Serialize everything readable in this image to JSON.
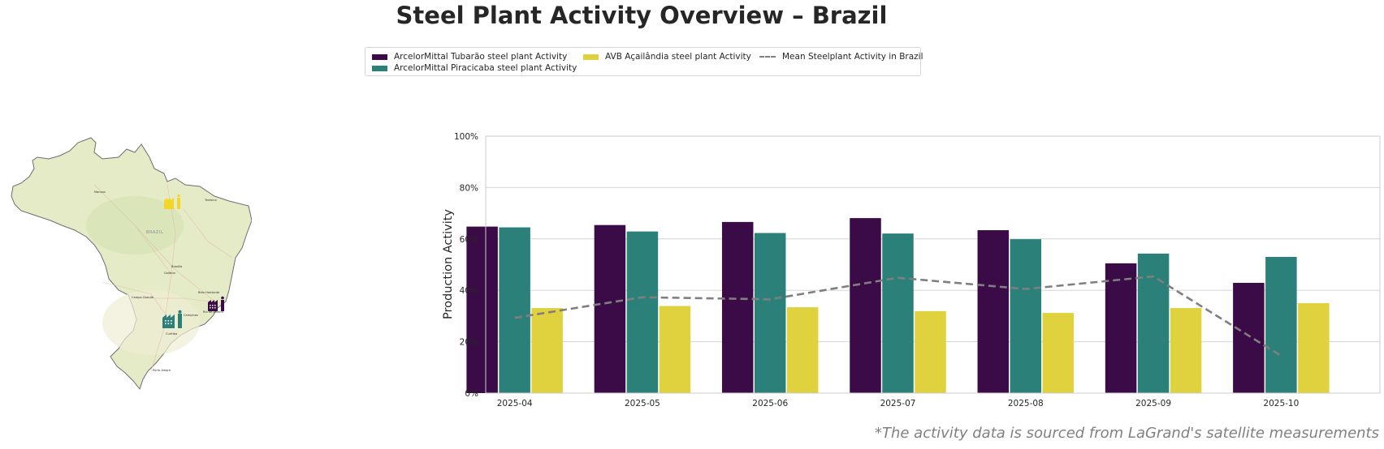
{
  "title": "Steel Plant Activity Overview – Brazil",
  "legend": {
    "items": [
      {
        "label": "ArcelorMittal Tubarão steel plant Activity",
        "color": "#3b0b47",
        "kind": "bar"
      },
      {
        "label": "ArcelorMittal Piracicaba steel plant Activity",
        "color": "#2b8179",
        "kind": "bar"
      },
      {
        "label": "AVB Açailândia steel plant Activity",
        "color": "#e0d13e",
        "kind": "bar"
      },
      {
        "label": "Mean Steelplant Activity in Brazil",
        "color": "#7f7f7f",
        "kind": "dashed-line"
      }
    ]
  },
  "map": {
    "country_label": "BRAZIL",
    "city_labels": [
      "Manaus",
      "Teresina",
      "Brasília",
      "Goiânia",
      "Campo Grande",
      "Belo Horizonte",
      "Rio de Janeiro",
      "Campinas",
      "Curitiba",
      "Porto Alegre"
    ],
    "markers": [
      {
        "name": "AVB Açailândia",
        "color": "#f2d62a"
      },
      {
        "name": "ArcelorMittal Tubarão",
        "color": "#3b0b47"
      },
      {
        "name": "ArcelorMittal Piracicaba",
        "color": "#2b8179"
      }
    ]
  },
  "footnote": "*The activity data is sourced from LaGrand's satellite measurements",
  "chart_data": {
    "type": "bar",
    "title": "",
    "xlabel": "",
    "ylabel": "Production Activity",
    "ylim": [
      0,
      100
    ],
    "yticks": [
      0,
      20,
      40,
      60,
      80,
      100
    ],
    "ytick_format": "{v}%",
    "grid": true,
    "legend_position": "top-center",
    "categories": [
      "2025-04",
      "2025-05",
      "2025-06",
      "2025-07",
      "2025-08",
      "2025-09",
      "2025-10"
    ],
    "series": [
      {
        "name": "ArcelorMittal Tubarão steel plant Activity",
        "type": "bar",
        "color": "#3b0b47",
        "values": [
          64.8,
          65.4,
          66.6,
          68.1,
          63.4,
          50.5,
          42.9
        ]
      },
      {
        "name": "ArcelorMittal Piracicaba steel plant Activity",
        "type": "bar",
        "color": "#2b8179",
        "values": [
          64.5,
          62.9,
          62.3,
          62.1,
          59.9,
          54.3,
          53.0
        ]
      },
      {
        "name": "AVB Açailândia steel plant Activity",
        "type": "bar",
        "color": "#e0d13e",
        "values": [
          33.1,
          33.9,
          33.4,
          31.9,
          31.2,
          33.1,
          35.0
        ]
      },
      {
        "name": "Mean Steelplant Activity in Brazil",
        "type": "line",
        "style": "dashed",
        "color": "#7f7f7f",
        "values": [
          29.3,
          37.3,
          36.5,
          44.9,
          40.5,
          45.4,
          14.5
        ]
      }
    ]
  }
}
